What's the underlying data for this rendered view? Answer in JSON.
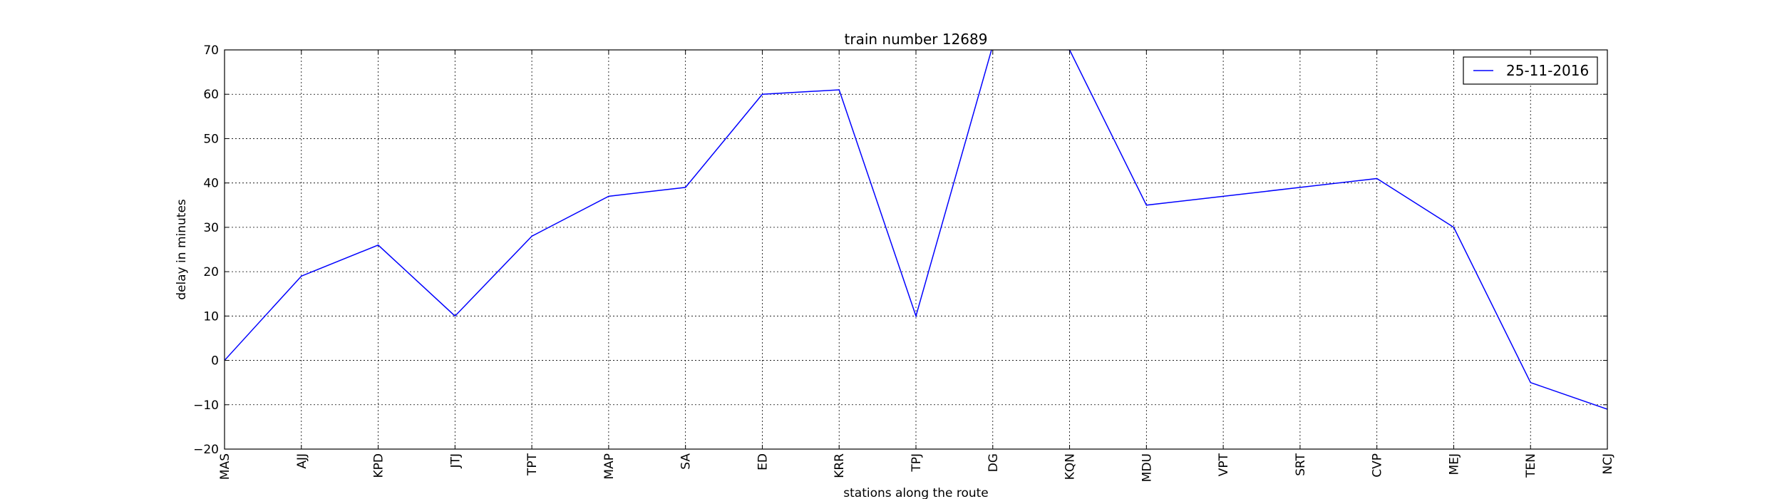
{
  "chart_data": {
    "type": "line",
    "title": "train number 12689",
    "xlabel": "stations along the route",
    "ylabel": "delay in minutes",
    "categories": [
      "MAS",
      "AJJ",
      "KPD",
      "JTJ",
      "TPT",
      "MAP",
      "SA",
      "ED",
      "KRR",
      "TPJ",
      "DG",
      "KQN",
      "MDU",
      "VPT",
      "SRT",
      "CVP",
      "MEJ",
      "TEN",
      "NCJ"
    ],
    "series": [
      {
        "name": "25-11-2016",
        "color": "#0000ff",
        "values": [
          0,
          19,
          26,
          10,
          28,
          37,
          39,
          60,
          61,
          10,
          71,
          70,
          35,
          37,
          39,
          41,
          30,
          -5,
          -11
        ]
      }
    ],
    "ylim": [
      -20,
      70
    ],
    "yticks": [
      -20,
      -10,
      0,
      10,
      20,
      30,
      40,
      50,
      60,
      70
    ],
    "grid": true,
    "legend_position": "top-right"
  }
}
